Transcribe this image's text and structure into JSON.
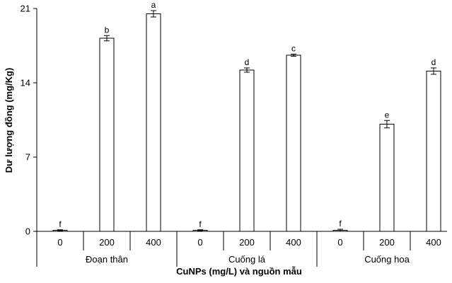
{
  "chart_data": {
    "type": "bar",
    "title": "",
    "xlabel": "CuNPs (mg/L) và nguồn mẫu",
    "ylabel": "Dư lượng đồng (mg/Kg)",
    "ylim": [
      0,
      21
    ],
    "yticks": [
      "0",
      "7",
      "14",
      "21"
    ],
    "grid": false,
    "legend": "none",
    "colors": {
      "bar_fill": "#ffffff",
      "bar_stroke": "#000000",
      "axis": "#000000"
    },
    "groups": [
      {
        "name": "Đoạn thân",
        "categories": [
          "0",
          "200",
          "400"
        ],
        "values": [
          0.1,
          18.2,
          20.5
        ],
        "errors": [
          0.05,
          0.25,
          0.3
        ],
        "letters": [
          "f",
          "b",
          "a"
        ]
      },
      {
        "name": "Cuống lá",
        "categories": [
          "0",
          "200",
          "400"
        ],
        "values": [
          0.1,
          15.2,
          16.6
        ],
        "errors": [
          0.05,
          0.2,
          0.1
        ],
        "letters": [
          "f",
          "d",
          "c"
        ]
      },
      {
        "name": "Cuống hoa",
        "categories": [
          "0",
          "200",
          "400"
        ],
        "values": [
          0.1,
          10.1,
          15.1
        ],
        "errors": [
          0.1,
          0.35,
          0.3
        ],
        "letters": [
          "f",
          "e",
          "d"
        ]
      }
    ]
  }
}
